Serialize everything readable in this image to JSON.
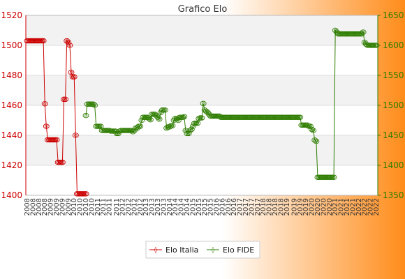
{
  "chart_data": {
    "type": "line",
    "title": "Grafico Elo",
    "background_gradient": [
      "#ffffff",
      "#ff8c1a"
    ],
    "plot_band_colors": [
      "#f2f2f2",
      "#ffffff"
    ],
    "grid": true,
    "legend_position": "bottom-center",
    "left_axis": {
      "ylim": [
        1400,
        1520
      ],
      "ticks": [
        1400,
        1420,
        1440,
        1460,
        1480,
        1500,
        1520
      ],
      "color": "#cc0000"
    },
    "right_axis": {
      "ylim": [
        1350,
        1650
      ],
      "ticks": [
        1350,
        1400,
        1450,
        1500,
        1550,
        1600,
        1650
      ],
      "color": "#2e7d00"
    },
    "x_tick_labels": [
      "2008",
      "2009",
      "2010",
      "2011",
      "2012",
      "2013",
      "2014",
      "2015",
      "2016",
      "2017",
      "2018",
      "2019",
      "2020",
      "2021",
      "2022"
    ],
    "series": [
      {
        "name": "Elo Italia",
        "axis": "left",
        "color": "#cc0000",
        "values": [
          1503,
          1503,
          1503,
          1503,
          1503,
          1503,
          1503,
          1503,
          1503,
          1503,
          1503,
          1503,
          1461,
          1446,
          1437,
          1437,
          1437,
          1437,
          1437,
          1437,
          1437,
          1422,
          1422,
          1422,
          1422,
          1464,
          1464,
          1503,
          1502,
          1500,
          1482,
          1479,
          1479,
          1440,
          1401,
          1401,
          1401,
          1401,
          1401,
          1401,
          1401
        ]
      },
      {
        "name": "Elo FIDE",
        "axis": "right",
        "start_index": 40,
        "color": "#2e7d00",
        "values": [
          1483,
          1502,
          1502,
          1502,
          1502,
          1502,
          1500,
          1465,
          1465,
          1465,
          1465,
          1458,
          1458,
          1458,
          1458,
          1458,
          1458,
          1457,
          1457,
          1457,
          1457,
          1453,
          1453,
          1457,
          1458,
          1458,
          1458,
          1458,
          1458,
          1458,
          1458,
          1458,
          1456,
          1458,
          1462,
          1462,
          1465,
          1465,
          1475,
          1480,
          1480,
          1480,
          1480,
          1478,
          1476,
          1485,
          1485,
          1485,
          1483,
          1480,
          1477,
          1488,
          1492,
          1492,
          1492,
          1462,
          1464,
          1464,
          1466,
          1466,
          1475,
          1478,
          1478,
          1475,
          1480,
          1480,
          1480,
          1481,
          1458,
          1453,
          1453,
          1458,
          1460,
          1465,
          1470,
          1470,
          1470,
          1478,
          1479,
          1479,
          1503,
          1492,
          1490,
          1488,
          1485,
          1482,
          1482,
          1482,
          1482,
          1482,
          1482,
          1482,
          1480,
          1480,
          1480,
          1480,
          1480,
          1480,
          1480,
          1480,
          1480,
          1480,
          1480,
          1480,
          1480,
          1480,
          1480,
          1480,
          1480,
          1480,
          1480,
          1480,
          1480,
          1480,
          1480,
          1480,
          1480,
          1480,
          1480,
          1480,
          1480,
          1480,
          1480,
          1480,
          1480,
          1480,
          1480,
          1480,
          1480,
          1480,
          1480,
          1480,
          1480,
          1480,
          1480,
          1480,
          1480,
          1480,
          1480,
          1480,
          1480,
          1480,
          1480,
          1480,
          1480,
          1480,
          1480,
          1467,
          1467,
          1467,
          1467,
          1467,
          1465,
          1465,
          1460,
          1458,
          1442,
          1440,
          1380,
          1380,
          1380,
          1380,
          1380,
          1380,
          1380,
          1380,
          1380,
          1380,
          1380,
          1380,
          1625,
          1622,
          1619,
          1619,
          1619,
          1619,
          1619,
          1619,
          1619,
          1619,
          1619,
          1619,
          1619,
          1619,
          1619,
          1619,
          1619,
          1619,
          1619,
          1622,
          1605,
          1602,
          1600,
          1600,
          1600,
          1600,
          1600,
          1600,
          1600
        ]
      }
    ]
  }
}
